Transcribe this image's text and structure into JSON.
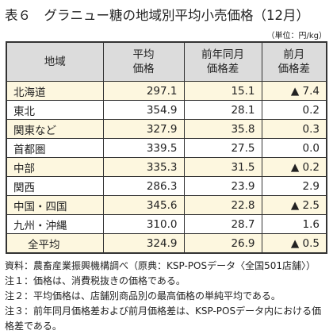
{
  "header": {
    "title": "表６　グラニュー糖の地域別平均小売価格（12月）",
    "unit": "（単位：円/kg）"
  },
  "table": {
    "columns": [
      [
        "地域"
      ],
      [
        "平均",
        "価格"
      ],
      [
        "前年同月",
        "価格差"
      ],
      [
        "前月",
        "価格差"
      ]
    ],
    "rows": [
      [
        "北海道",
        "297.1",
        "15.1",
        "▲ 7.4"
      ],
      [
        "東北",
        "354.9",
        "28.1",
        "0.2"
      ],
      [
        "関東など",
        "327.9",
        "35.8",
        "0.3"
      ],
      [
        "首都圏",
        "339.5",
        "27.5",
        "0.0"
      ],
      [
        "中部",
        "335.3",
        "31.5",
        "▲ 0.2"
      ],
      [
        "関西",
        "286.3",
        "23.9",
        "2.9"
      ],
      [
        "中国・四国",
        "345.6",
        "22.8",
        "▲ 2.5"
      ],
      [
        "九州・沖縄",
        "310.0",
        "28.7",
        "1.6"
      ],
      [
        "全平均",
        "324.9",
        "26.9",
        "▲ 0.5"
      ]
    ]
  },
  "notes": [
    {
      "label": "資料：",
      "text": "農畜産業振興機構調べ（原典：KSP-POSデータ〈全国501店舗〉）"
    },
    {
      "label": "注１：",
      "text": "価格は、消費税抜きの価格である。"
    },
    {
      "label": "注２：",
      "text": "平均価格は、店舗別商品別の最高価格の単純平均である。"
    },
    {
      "label": "注３：",
      "text": "前年同月価格差および前月価格差は、KSP-POSデータ内における価格差である。"
    }
  ]
}
